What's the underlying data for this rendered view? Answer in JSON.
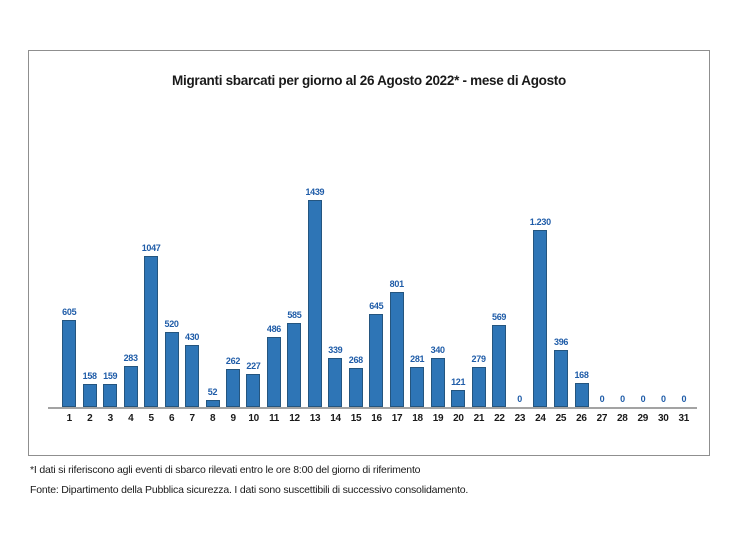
{
  "chart_data": {
    "type": "bar",
    "title": "Migranti sbarcati per giorno al 26 Agosto 2022* - mese di Agosto",
    "xlabel": "",
    "ylabel": "",
    "ylim": [
      0,
      1500
    ],
    "grid": false,
    "legend": false,
    "categories": [
      "1",
      "2",
      "3",
      "4",
      "5",
      "6",
      "7",
      "8",
      "9",
      "10",
      "11",
      "12",
      "13",
      "14",
      "15",
      "16",
      "17",
      "18",
      "19",
      "20",
      "21",
      "22",
      "23",
      "24",
      "25",
      "26",
      "27",
      "28",
      "29",
      "30",
      "31"
    ],
    "values": [
      605,
      158,
      159,
      283,
      1047,
      520,
      430,
      52,
      262,
      227,
      486,
      585,
      1439,
      339,
      268,
      645,
      801,
      281,
      340,
      121,
      279,
      569,
      0,
      1230,
      396,
      168,
      0,
      0,
      0,
      0,
      0
    ],
    "value_labels": [
      "605",
      "158",
      "159",
      "283",
      "1047",
      "520",
      "430",
      "52",
      "262",
      "227",
      "486",
      "585",
      "1439",
      "339",
      "268",
      "645",
      "801",
      "281",
      "340",
      "121",
      "279",
      "569",
      "0",
      "1.230",
      "396",
      "168",
      "0",
      "0",
      "0",
      "0",
      "0"
    ],
    "bar_color": "#2E75B6",
    "bar_border_color": "#24557F",
    "value_label_color": "#1F5CA8",
    "axis_line_color": "#A3A3A3"
  },
  "footnotes": {
    "line1": "*I dati si riferiscono agli eventi di sbarco rilevati entro le ore 8:00 del giorno di riferimento",
    "line2": "Fonte: Dipartimento della Pubblica sicurezza. I dati sono suscettibili di successivo consolidamento."
  }
}
